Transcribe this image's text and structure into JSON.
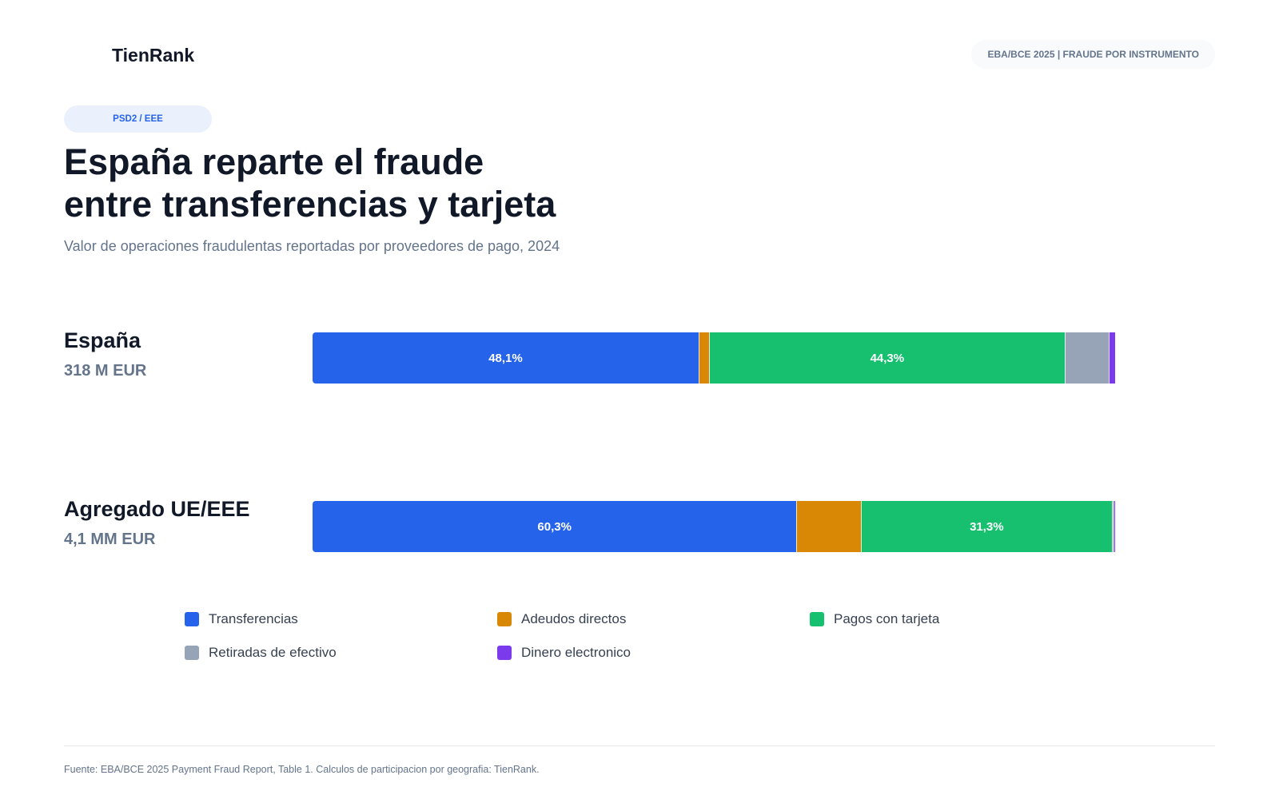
{
  "header": {
    "logo": "TienRank",
    "source_pill": "EBA/BCE 2025 | FRAUDE POR INSTRUMENTO"
  },
  "tag": "PSD2 / EEE",
  "title_lines": [
    "España reparte el fraude",
    "entre transferencias y tarjeta"
  ],
  "subtitle": "Valor de operaciones fraudulentas reportadas por proveedores de pago, 2024",
  "footnote": "Fuente: EBA/BCE 2025 Payment Fraud Report, Table 1. Calculos de participacion por geografia: TienRank.",
  "chart_data": {
    "type": "bar",
    "orientation": "horizontal",
    "stacked": true,
    "normalized_percent": true,
    "categories": [
      "España",
      "Agregado UE/EEE"
    ],
    "category_totals": [
      "318 M EUR",
      "4,1 MM EUR"
    ],
    "series": [
      {
        "name": "Transferencias",
        "color": "#2563eb",
        "values": [
          48.1,
          60.3
        ],
        "labels": [
          "48,1%",
          "60,3%"
        ]
      },
      {
        "name": "Adeudos directos",
        "color": "#d98806",
        "values": [
          1.3,
          8.0
        ],
        "labels": [
          "",
          ""
        ]
      },
      {
        "name": "Pagos con tarjeta",
        "color": "#16c06e",
        "values": [
          44.3,
          31.3
        ],
        "labels": [
          "44,3%",
          "31,3%"
        ]
      },
      {
        "name": "Retiradas de efectivo",
        "color": "#97a3b6",
        "values": [
          5.5,
          0.2
        ],
        "labels": [
          "",
          ""
        ]
      },
      {
        "name": "Dinero electronico",
        "color": "#7c3aed",
        "values": [
          0.8,
          0.2
        ],
        "labels": [
          "",
          ""
        ]
      }
    ],
    "xlim": [
      0,
      100
    ],
    "legend_position": "bottom",
    "grid": false
  }
}
